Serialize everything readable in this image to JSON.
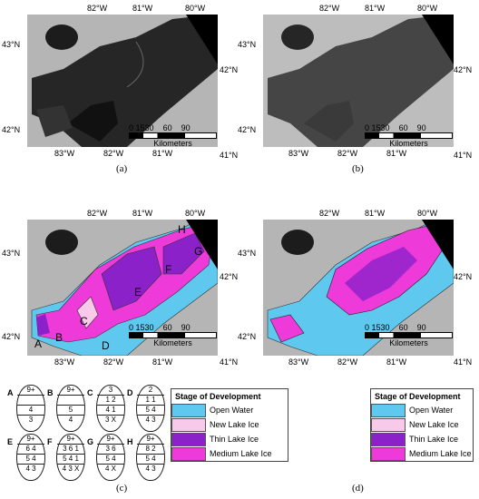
{
  "panels": [
    {
      "id": "a",
      "caption": "(a)"
    },
    {
      "id": "b",
      "caption": "(b)"
    },
    {
      "id": "c",
      "caption": "(c)"
    },
    {
      "id": "d",
      "caption": "(d)"
    }
  ],
  "top_lon_labels": [
    "82°W",
    "81°W",
    "80°W"
  ],
  "bottom_lon_labels": [
    "83°W",
    "82°W",
    "81°W"
  ],
  "left_lat_labels": [
    "43°N",
    "42°N"
  ],
  "right_lat_labels": [
    "42°N",
    "41°N"
  ],
  "scalebar": {
    "ticks": [
      "0",
      "15",
      "30",
      "60",
      "90"
    ],
    "unit": "Kilometers"
  },
  "region_letters": [
    "A",
    "B",
    "C",
    "D",
    "E",
    "F",
    "G",
    "H"
  ],
  "legend": {
    "title": "Stage of Development",
    "items": [
      {
        "label": "Open Water",
        "color": "#5ec8ef"
      },
      {
        "label": "New Lake Ice",
        "color": "#f8c9e8"
      },
      {
        "label": "Thin Lake Ice",
        "color": "#8b22c9"
      },
      {
        "label": "Medium Lake Ice",
        "color": "#ee3ad8"
      }
    ]
  },
  "egg_codes": [
    {
      "id": "A",
      "lines": [
        "9+",
        "",
        "4",
        "3"
      ]
    },
    {
      "id": "B",
      "lines": [
        "9+",
        "",
        "5",
        "4"
      ]
    },
    {
      "id": "C",
      "lines": [
        "3",
        "1 2",
        "4 1",
        "3 X"
      ]
    },
    {
      "id": "D",
      "lines": [
        "2",
        "1 1",
        "5 4",
        "4 3"
      ]
    },
    {
      "id": "E",
      "lines": [
        "9+",
        "6 4",
        "5 4",
        "4 3"
      ]
    },
    {
      "id": "F",
      "lines": [
        "9+",
        "3 6 1",
        "5 4 1",
        "4 3 X"
      ]
    },
    {
      "id": "G",
      "lines": [
        "9+",
        "3 6",
        "5 4",
        "4 X"
      ]
    },
    {
      "id": "H",
      "lines": [
        "9+",
        "8 2",
        "5 4",
        "4 3"
      ]
    }
  ]
}
